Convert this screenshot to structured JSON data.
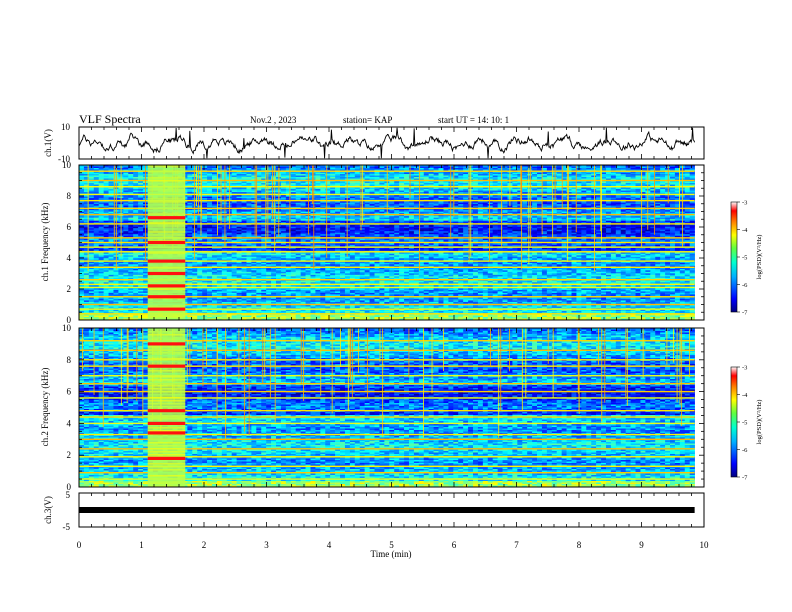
{
  "header": {
    "title": "VLF Spectra",
    "date": "Nov.2 , 2023",
    "station": "station= KAP",
    "start": "start UT = 14: 10: 1"
  },
  "chart_data": [
    {
      "id": "ch1-waveform",
      "type": "line",
      "ylabel": "ch.1(V)",
      "ylim": [
        -10,
        10
      ],
      "yticklabels": [
        "10",
        "-10"
      ],
      "xlim": [
        0,
        10
      ],
      "trace_end_min": 9.85,
      "color": "#000000"
    },
    {
      "id": "ch1-spectrogram",
      "type": "heatmap",
      "ylabel": "ch.1 Frequency (kHz)",
      "ylim": [
        0,
        10
      ],
      "yticklabels": [
        "0",
        "2",
        "4",
        "6",
        "8",
        "10"
      ],
      "xlim": [
        0,
        10
      ],
      "data_end_min": 9.85,
      "colorbar": {
        "label": "log(PSD)(V²/Hz)",
        "ticks": [
          "-3",
          "-4",
          "-5",
          "-6",
          "-7"
        ],
        "range": [
          -7,
          -3
        ]
      },
      "lines_khz": [
        0.4,
        0.7,
        1.0,
        1.5,
        2.1,
        2.3,
        2.6,
        3.4,
        3.8,
        4.4,
        4.7,
        5.0,
        5.3,
        6.2,
        6.8,
        7.2,
        7.7,
        8.1,
        8.6,
        9.0,
        9.6
      ],
      "burst": {
        "start_min": 1.1,
        "end_min": 1.7,
        "red_bands_khz": [
          0.7,
          1.5,
          2.2,
          3.0,
          3.8,
          5.0,
          6.6
        ]
      }
    },
    {
      "id": "ch2-spectrogram",
      "type": "heatmap",
      "ylabel": "ch.2 Frequency (kHz)",
      "ylim": [
        0,
        10
      ],
      "yticklabels": [
        "0",
        "2",
        "4",
        "6",
        "8",
        "10"
      ],
      "xlim": [
        0,
        10
      ],
      "data_end_min": 9.85,
      "colorbar": {
        "label": "log(PSD)(V²/Hz)",
        "ticks": [
          "-3",
          "-4",
          "-5",
          "-6",
          "-7"
        ],
        "range": [
          -7,
          -3
        ]
      },
      "lines_khz": [
        0.5,
        0.9,
        1.3,
        1.9,
        2.4,
        3.0,
        3.3,
        4.0,
        4.4,
        4.8,
        5.6,
        6.0,
        6.5,
        7.0,
        7.6,
        8.0,
        8.6,
        9.2
      ],
      "burst": {
        "start_min": 1.1,
        "end_min": 1.7,
        "red_bands_khz": [
          1.8,
          3.4,
          4.0,
          4.8,
          7.6,
          9.0
        ]
      }
    },
    {
      "id": "ch3-waveform",
      "type": "line",
      "ylabel": "ch.3(V)",
      "ylim": [
        -5,
        5
      ],
      "yticklabels": [
        "5",
        "-5"
      ],
      "xlim": [
        0,
        10
      ],
      "trace_end_min": 9.85,
      "color": "#000000"
    }
  ],
  "xaxis": {
    "label": "Time (min)",
    "ticklabels": [
      "0",
      "1",
      "2",
      "3",
      "4",
      "5",
      "6",
      "7",
      "8",
      "9",
      "10"
    ]
  },
  "colors": {
    "colormap": [
      "#00007f",
      "#0000ff",
      "#0080ff",
      "#00ffff",
      "#80ff80",
      "#ffff00",
      "#ff8000",
      "#ff0000",
      "#ffffff"
    ]
  }
}
